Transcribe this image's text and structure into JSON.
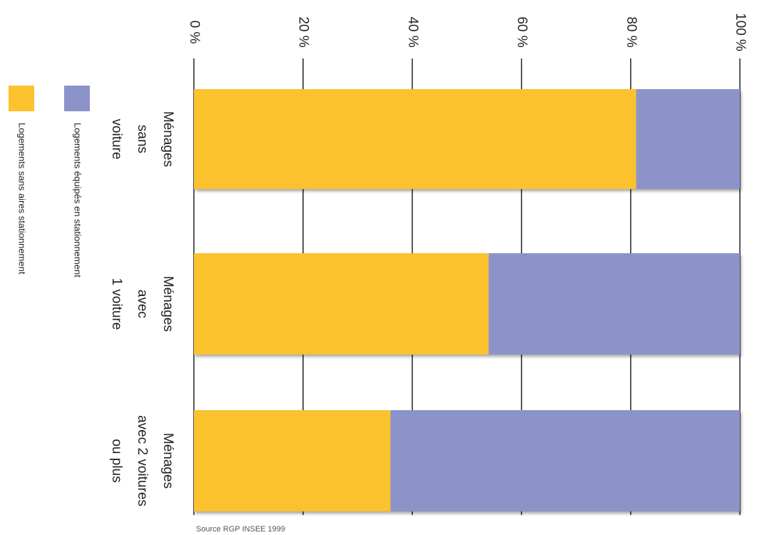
{
  "chart_data": {
    "type": "stacked_bar",
    "categories": [
      [
        "Ménages",
        "sans",
        "voiture"
      ],
      [
        "Ménages",
        "avec",
        "1 voiture"
      ],
      [
        "Ménages",
        "avec 2 voitures",
        "ou plus"
      ]
    ],
    "series": [
      {
        "name": "Logements sans aires stationnement",
        "color": "#fbc22d",
        "values": [
          81,
          54,
          36
        ]
      },
      {
        "name": "Logements équipés en stationnement",
        "color": "#8c93c8",
        "values": [
          19,
          46,
          64
        ]
      }
    ],
    "xlim": [
      0,
      100
    ],
    "xticks": [
      {
        "value": 0,
        "label": "0 %"
      },
      {
        "value": 20,
        "label": "20 %"
      },
      {
        "value": 40,
        "label": "40 %"
      },
      {
        "value": 60,
        "label": "60 %"
      },
      {
        "value": 80,
        "label": "80 %"
      },
      {
        "value": 100,
        "label": "100 %"
      }
    ],
    "grid": true,
    "source": "Source RGP INSEE 1999"
  }
}
